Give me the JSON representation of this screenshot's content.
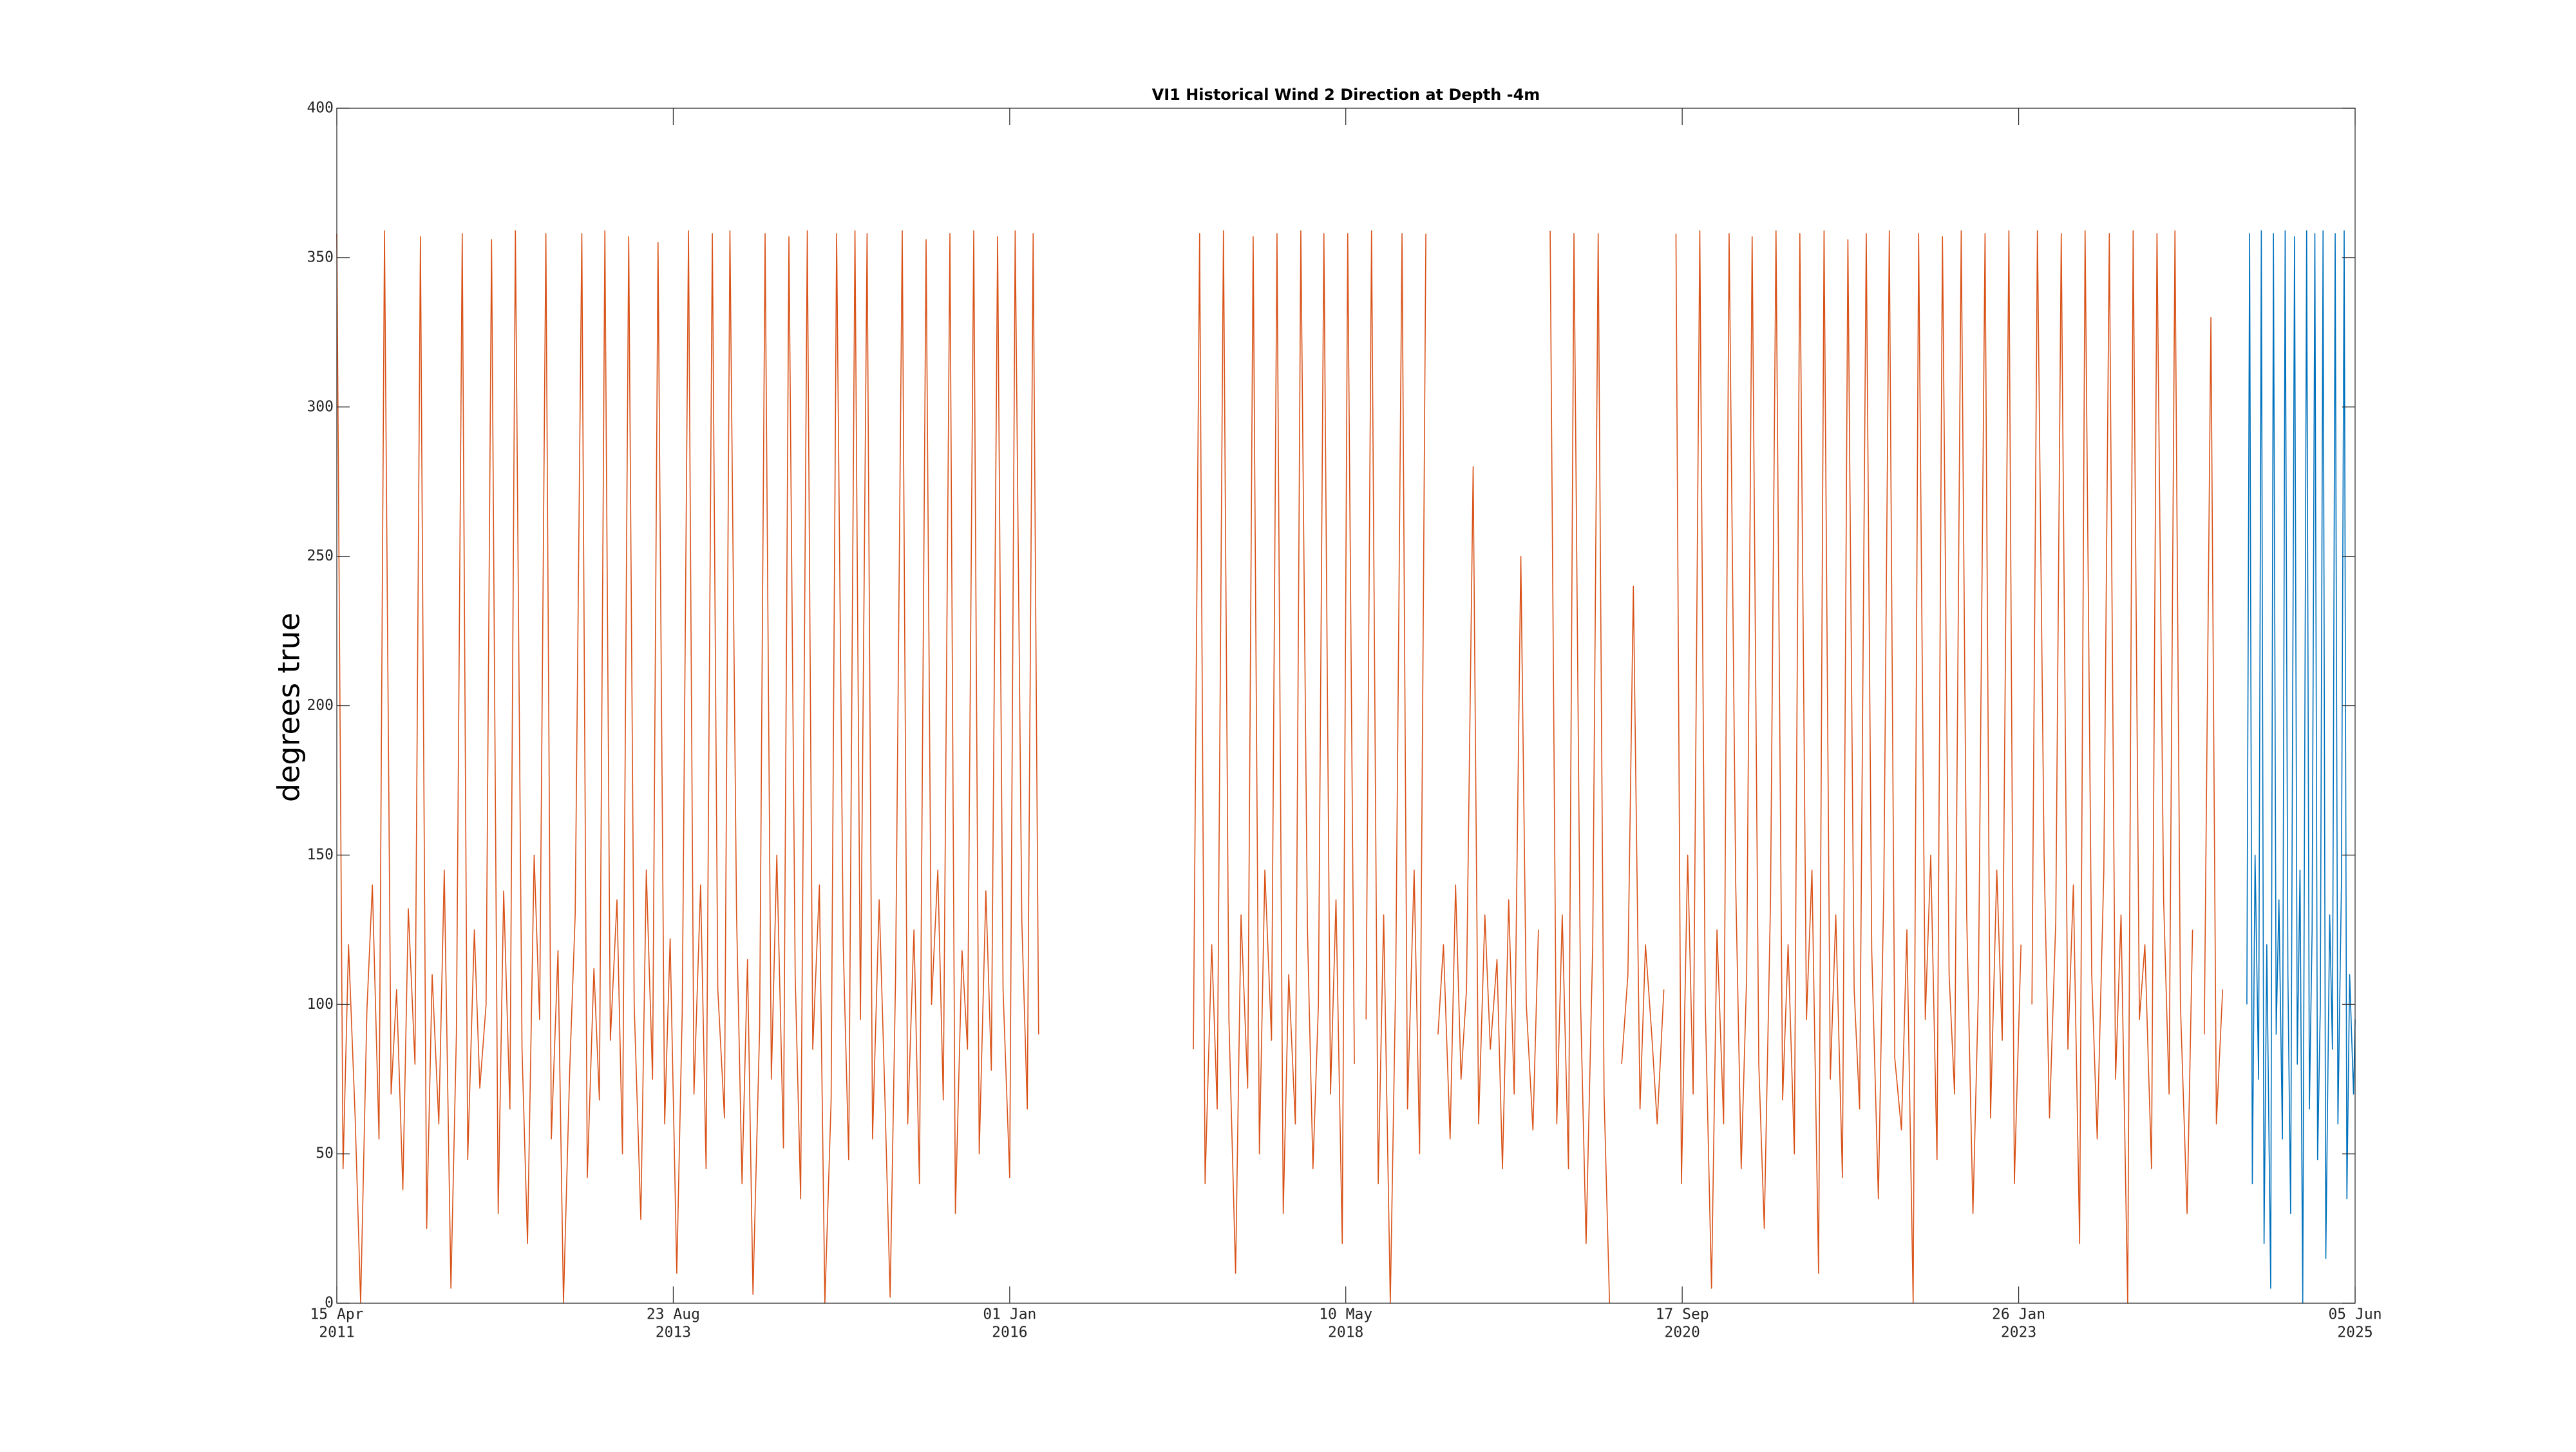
{
  "chart_data": {
    "type": "line",
    "title": "VI1 Historical Wind 2 Direction at Depth -4m",
    "ylabel": "degrees true",
    "xlim": [
      "2011-04-15",
      "2025-06-05"
    ],
    "ylim": [
      0,
      400
    ],
    "yticks": [
      0,
      50,
      100,
      150,
      200,
      250,
      300,
      350,
      400
    ],
    "xticks": [
      {
        "value": "2011-04-15",
        "label": [
          "15 Apr",
          "2011"
        ]
      },
      {
        "value": "2013-08-23",
        "label": [
          "23 Aug",
          "2013"
        ]
      },
      {
        "value": "2016-01-01",
        "label": [
          "01 Jan",
          "2016"
        ]
      },
      {
        "value": "2018-05-10",
        "label": [
          "10 May",
          "2018"
        ]
      },
      {
        "value": "2020-09-17",
        "label": [
          "17 Sep",
          "2020"
        ]
      },
      {
        "value": "2023-01-26",
        "label": [
          "26 Jan",
          "2023"
        ]
      },
      {
        "value": "2025-06-05",
        "label": [
          "05 Jun",
          "2025"
        ]
      }
    ],
    "grid": false,
    "series": [
      {
        "color": "#d95319",
        "x": [
          "2011-04-15",
          "2011-05-01",
          "2011-05-15",
          "2011-06-01",
          "2011-06-15",
          "2011-07-01",
          "2011-07-15",
          "2011-08-01",
          "2011-08-15",
          "2011-09-01",
          "2011-09-15",
          "2011-10-01",
          "2011-10-15",
          "2011-11-01",
          "2011-11-15",
          "2011-12-01",
          "2011-12-15",
          "2012-01-01",
          "2012-01-15",
          "2012-02-01",
          "2012-02-15",
          "2012-03-01",
          "2012-03-15",
          "2012-04-01",
          "2012-04-15",
          "2012-05-01",
          "2012-05-15",
          "2012-06-01",
          "2012-06-15",
          "2012-07-01",
          "2012-07-15",
          "2012-08-01",
          "2012-08-15",
          "2012-09-01",
          "2012-09-15",
          "2012-10-01",
          "2012-10-15",
          "2012-11-01",
          "2012-11-15",
          "2012-12-01",
          "2012-12-15",
          "2013-01-01",
          "2013-01-15",
          "2013-02-01",
          "2013-02-15",
          "2013-03-01",
          "2013-03-15",
          "2013-04-01",
          "2013-04-15",
          "2013-05-01",
          "2013-05-15",
          "2013-06-01",
          "2013-06-15",
          "2013-07-01",
          "2013-07-15",
          "2013-08-01",
          "2013-08-15",
          "2013-09-01",
          "2013-09-15",
          "2013-10-01",
          "2013-10-15",
          "2013-11-01",
          "2013-11-15",
          "2013-12-01",
          "2013-12-15",
          "2014-01-01",
          "2014-01-15",
          "2014-02-01",
          "2014-02-15",
          "2014-03-01",
          "2014-03-15",
          "2014-04-01",
          "2014-04-15",
          "2014-05-01",
          "2014-05-15",
          "2014-06-01",
          "2014-06-15",
          "2014-07-01",
          "2014-07-15",
          "2014-08-01",
          "2014-08-15",
          "2014-09-01",
          "2014-09-15",
          "2014-10-01",
          "2014-10-15",
          "2014-11-01",
          "2014-11-15",
          "2014-12-01",
          "2014-12-15",
          "2015-01-01",
          "2015-01-15",
          "2015-02-01",
          "2015-02-15",
          "2015-03-01",
          "2015-03-15",
          "2015-04-01",
          "2015-04-15",
          "2015-05-01",
          "2015-05-15",
          "2015-06-01",
          "2015-06-15",
          "2015-07-01",
          "2015-07-15",
          "2015-08-01",
          "2015-08-15",
          "2015-09-01",
          "2015-09-15",
          "2015-10-01",
          "2015-10-15",
          "2015-11-01",
          "2015-11-15",
          "2015-12-01",
          "2015-12-15",
          "2016-01-01",
          "2016-01-15",
          "2016-02-01",
          "2016-02-15",
          "2016-03-01",
          "2016-03-15",
          "2016-10-01",
          "2017-04-15",
          "2017-05-01",
          "2017-05-15",
          "2017-06-01",
          "2017-06-15",
          "2017-07-01",
          "2017-07-15",
          "2017-08-01",
          "2017-08-15",
          "2017-09-01",
          "2017-09-15",
          "2017-10-01",
          "2017-10-15",
          "2017-11-01",
          "2017-11-15",
          "2017-12-01",
          "2017-12-15",
          "2018-01-01",
          "2018-01-15",
          "2018-02-01",
          "2018-02-15",
          "2018-03-01",
          "2018-03-15",
          "2018-04-01",
          "2018-04-15",
          "2018-05-01",
          "2018-05-15",
          "2018-06-01",
          "2018-06-15",
          "2018-07-01",
          "2018-07-15",
          "2018-08-01",
          "2018-08-15",
          "2018-09-01",
          "2018-09-15",
          "2018-10-01",
          "2018-10-15",
          "2018-11-01",
          "2018-11-15",
          "2018-12-01",
          "2018-12-15",
          "2019-01-01",
          "2019-01-15",
          "2019-02-01",
          "2019-02-15",
          "2019-03-01",
          "2019-03-15",
          "2019-04-01",
          "2019-04-15",
          "2019-05-01",
          "2019-05-15",
          "2019-06-01",
          "2019-06-15",
          "2019-07-01",
          "2019-07-15",
          "2019-08-01",
          "2019-08-15",
          "2019-09-01",
          "2019-09-15",
          "2019-10-01",
          "2019-10-15",
          "2019-11-01",
          "2019-11-15",
          "2019-12-01",
          "2019-12-15",
          "2020-01-01",
          "2020-01-15",
          "2020-02-01",
          "2020-02-15",
          "2020-03-01",
          "2020-03-15",
          "2020-04-01",
          "2020-04-15",
          "2020-05-01",
          "2020-05-15",
          "2020-06-01",
          "2020-06-15",
          "2020-07-01",
          "2020-07-15",
          "2020-08-01",
          "2020-08-15",
          "2020-09-01",
          "2020-09-15",
          "2020-10-01",
          "2020-10-15",
          "2020-11-01",
          "2020-11-15",
          "2020-12-01",
          "2020-12-15",
          "2021-01-01",
          "2021-01-15",
          "2021-02-01",
          "2021-02-15",
          "2021-03-01",
          "2021-03-15",
          "2021-04-01",
          "2021-04-15",
          "2021-05-01",
          "2021-05-15",
          "2021-06-01",
          "2021-06-15",
          "2021-07-01",
          "2021-07-15",
          "2021-08-01",
          "2021-08-15",
          "2021-09-01",
          "2021-09-15",
          "2021-10-01",
          "2021-10-15",
          "2021-11-01",
          "2021-11-15",
          "2021-12-01",
          "2021-12-15",
          "2022-01-01",
          "2022-01-15",
          "2022-02-01",
          "2022-02-15",
          "2022-03-01",
          "2022-03-15",
          "2022-04-01",
          "2022-04-15",
          "2022-05-01",
          "2022-05-15",
          "2022-06-01",
          "2022-06-15",
          "2022-07-01",
          "2022-07-15",
          "2022-08-01",
          "2022-08-15",
          "2022-09-01",
          "2022-09-15",
          "2022-10-01",
          "2022-10-15",
          "2022-11-01",
          "2022-11-15",
          "2022-12-01",
          "2022-12-15",
          "2023-01-01",
          "2023-01-15",
          "2023-02-01",
          "2023-02-15",
          "2023-03-01",
          "2023-03-15",
          "2023-04-01",
          "2023-04-15",
          "2023-05-01",
          "2023-05-15",
          "2023-06-01",
          "2023-06-15",
          "2023-07-01",
          "2023-07-15",
          "2023-08-01",
          "2023-08-15",
          "2023-09-01",
          "2023-09-15",
          "2023-10-01",
          "2023-10-15",
          "2023-11-01",
          "2023-11-15",
          "2023-12-01",
          "2023-12-15",
          "2024-01-01",
          "2024-01-15",
          "2024-02-01",
          "2024-02-15",
          "2024-03-01",
          "2024-03-15",
          "2024-04-01",
          "2024-04-15",
          "2024-05-01",
          "2024-05-15",
          "2024-06-01",
          "2024-06-15",
          "2024-07-01"
        ],
        "values": [
          358,
          45,
          120,
          62,
          0,
          98,
          140,
          55,
          359,
          70,
          105,
          38,
          132,
          80,
          357,
          25,
          110,
          60,
          145,
          5,
          90,
          358,
          48,
          125,
          72,
          100,
          356,
          30,
          138,
          65,
          359,
          85,
          20,
          150,
          95,
          358,
          55,
          118,
          0,
          78,
          130,
          358,
          42,
          112,
          68,
          359,
          88,
          135,
          50,
          357,
          100,
          28,
          145,
          75,
          355,
          60,
          122,
          10,
          98,
          359,
          70,
          140,
          45,
          358,
          105,
          62,
          359,
          130,
          40,
          115,
          3,
          92,
          358,
          75,
          150,
          52,
          357,
          110,
          35,
          359,
          85,
          140,
          0,
          68,
          358,
          120,
          48,
          359,
          95,
          358,
          55,
          135,
          72,
          2,
          110,
          359,
          60,
          125,
          40,
          356,
          100,
          145,
          68,
          358,
          30,
          118,
          85,
          359,
          50,
          138,
          78,
          357,
          105,
          42,
          359,
          128,
          65,
          358,
          90,
          null,
          85,
          358,
          40,
          120,
          65,
          359,
          95,
          10,
          130,
          72,
          357,
          50,
          145,
          88,
          358,
          30,
          110,
          60,
          359,
          125,
          45,
          100,
          358,
          70,
          135,
          20,
          358,
          80,
          null,
          95,
          359,
          40,
          130,
          0,
          110,
          358,
          65,
          145,
          50,
          358,
          null,
          90,
          120,
          55,
          140,
          75,
          105,
          280,
          60,
          130,
          85,
          115,
          45,
          135,
          70,
          250,
          100,
          58,
          125,
          null,
          359,
          60,
          130,
          45,
          358,
          100,
          20,
          120,
          358,
          70,
          0,
          null,
          80,
          110,
          240,
          65,
          120,
          90,
          60,
          105,
          null,
          358,
          40,
          150,
          70,
          359,
          100,
          5,
          125,
          60,
          358,
          140,
          45,
          110,
          357,
          80,
          25,
          135,
          359,
          68,
          120,
          50,
          358,
          95,
          145,
          10,
          359,
          75,
          130,
          42,
          356,
          105,
          65,
          358,
          118,
          35,
          140,
          359,
          82,
          58,
          125,
          0,
          358,
          95,
          150,
          48,
          357,
          110,
          70,
          359,
          130,
          30,
          105,
          358,
          62,
          145,
          88,
          359,
          40,
          120,
          null,
          100,
          359,
          150,
          62,
          128,
          358,
          85,
          140,
          20,
          359,
          110,
          55,
          145,
          358,
          75,
          130,
          0,
          359,
          95,
          120,
          45,
          358,
          135,
          70,
          359,
          100,
          30,
          125,
          null,
          90,
          330,
          60,
          105
        ]
      },
      {
        "color": "#0072bd",
        "x": [
          "2024-09-01",
          "2024-09-08",
          "2024-09-15",
          "2024-09-22",
          "2024-10-01",
          "2024-10-08",
          "2024-10-15",
          "2024-10-22",
          "2024-11-01",
          "2024-11-08",
          "2024-11-15",
          "2024-11-22",
          "2024-12-01",
          "2024-12-08",
          "2024-12-15",
          "2024-12-22",
          "2025-01-01",
          "2025-01-08",
          "2025-01-15",
          "2025-01-22",
          "2025-02-01",
          "2025-02-08",
          "2025-02-15",
          "2025-02-22",
          "2025-03-01",
          "2025-03-08",
          "2025-03-15",
          "2025-03-22",
          "2025-04-01",
          "2025-04-08",
          "2025-04-15",
          "2025-04-22",
          "2025-05-01",
          "2025-05-08",
          "2025-05-15",
          "2025-05-22",
          "2025-06-01",
          "2025-06-05"
        ],
        "values": [
          100,
          358,
          40,
          150,
          75,
          359,
          20,
          120,
          5,
          358,
          90,
          135,
          55,
          359,
          110,
          30,
          357,
          80,
          145,
          0,
          359,
          65,
          125,
          358,
          48,
          100,
          359,
          15,
          130,
          85,
          358,
          60,
          140,
          359,
          35,
          110,
          70,
          95
        ]
      }
    ]
  }
}
